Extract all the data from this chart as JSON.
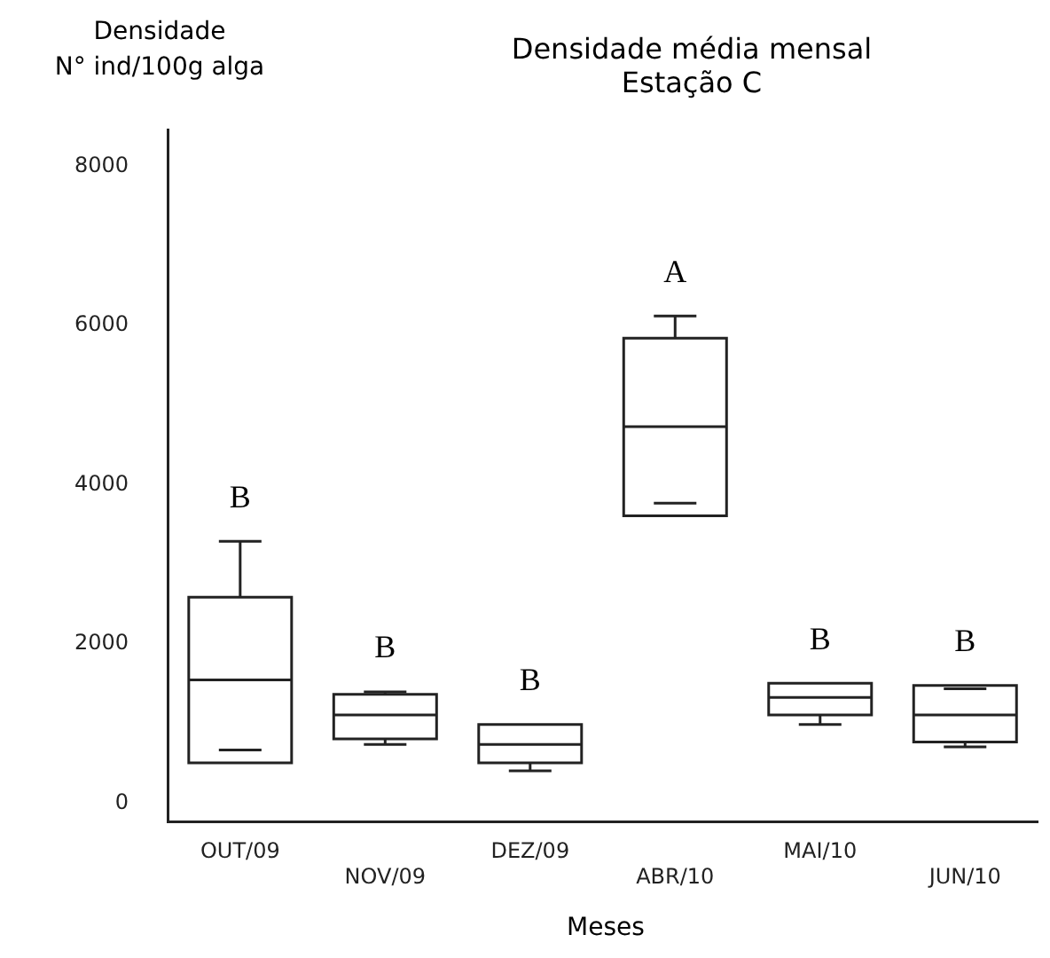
{
  "chart_data": {
    "type": "box",
    "title": "Densidade média mensal",
    "subtitle": "Estação C",
    "ylabel": "Densidade\nN° ind/100g alga",
    "xlabel": "Meses",
    "categories": [
      "OUT/09",
      "NOV/09",
      "DEZ/09",
      "ABR/10",
      "MAI/10",
      "JUN/10"
    ],
    "boxes": [
      {
        "low": 510,
        "q1": 510,
        "median": 1550,
        "q3": 2590,
        "high": 3290,
        "mean": 670
      },
      {
        "low": 740,
        "q1": 810,
        "median": 1110,
        "q3": 1370,
        "high": 1400
      },
      {
        "low": 410,
        "q1": 510,
        "median": 740,
        "q3": 990,
        "high": 990
      },
      {
        "low": 3610,
        "q1": 3610,
        "median": 4730,
        "q3": 5840,
        "high": 6120,
        "mean": 3770
      },
      {
        "low": 990,
        "q1": 1110,
        "median": 1330,
        "q3": 1510,
        "high": 1510
      },
      {
        "low": 710,
        "q1": 770,
        "median": 1110,
        "q3": 1480,
        "high": 1480,
        "mean": 1440
      }
    ],
    "ylim": [
      -230,
      8460
    ],
    "yticks": [
      0,
      2000,
      4000,
      6000,
      8000
    ],
    "grid": false,
    "legend": false,
    "annotations": [
      "B",
      "B",
      "B",
      "A",
      "B",
      "B"
    ]
  }
}
